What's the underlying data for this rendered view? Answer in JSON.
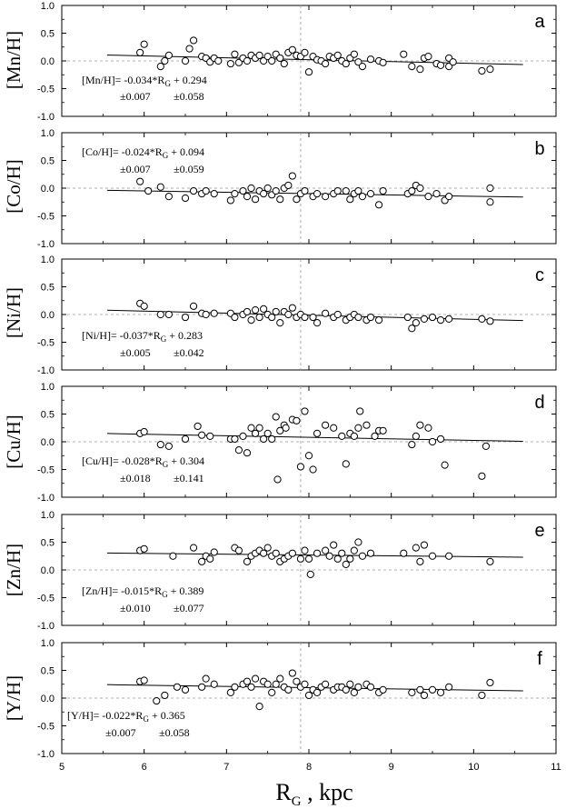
{
  "figure": {
    "xlabel_main": "R",
    "xlabel_sub": "G",
    "xlabel_rest": " , kpc",
    "x_ticks": [
      "5",
      "6",
      "7",
      "8",
      "9",
      "10",
      "11"
    ],
    "y_ticks": [
      "1.0",
      "0.5",
      "0.0",
      "-0.5",
      "-1.0"
    ],
    "sun_line_x": 7.9
  },
  "chart_data": [
    {
      "type": "scatter",
      "panel": "a",
      "ylabel": "[Mn/H]",
      "xlim": [
        5,
        11
      ],
      "ylim": [
        -1.0,
        1.0
      ],
      "equation": {
        "line1_a": "[Mn/H]= -0.034*R",
        "line1_sub": "G",
        "line1_b": " + 0.294",
        "err_slope": "±0.007",
        "err_intercept": "±0.058"
      },
      "fit": {
        "slope": -0.034,
        "intercept": 0.294,
        "x_range": [
          5.55,
          10.6
        ]
      },
      "points": [
        [
          5.95,
          0.15
        ],
        [
          6.0,
          0.3
        ],
        [
          6.2,
          -0.1
        ],
        [
          6.25,
          0.0
        ],
        [
          6.3,
          0.1
        ],
        [
          6.5,
          0.0
        ],
        [
          6.55,
          0.22
        ],
        [
          6.6,
          0.37
        ],
        [
          6.7,
          0.08
        ],
        [
          6.75,
          0.05
        ],
        [
          6.8,
          -0.02
        ],
        [
          6.85,
          0.05
        ],
        [
          6.9,
          0.0
        ],
        [
          7.05,
          -0.05
        ],
        [
          7.1,
          0.12
        ],
        [
          7.15,
          -0.03
        ],
        [
          7.2,
          0.05
        ],
        [
          7.25,
          0.0
        ],
        [
          7.3,
          0.1
        ],
        [
          7.35,
          0.05
        ],
        [
          7.4,
          0.1
        ],
        [
          7.45,
          0.0
        ],
        [
          7.5,
          0.08
        ],
        [
          7.55,
          0.0
        ],
        [
          7.6,
          0.12
        ],
        [
          7.65,
          0.05
        ],
        [
          7.7,
          -0.05
        ],
        [
          7.75,
          0.15
        ],
        [
          7.8,
          0.2
        ],
        [
          7.85,
          0.1
        ],
        [
          7.9,
          0.08
        ],
        [
          7.95,
          0.15
        ],
        [
          8.0,
          -0.2
        ],
        [
          8.05,
          0.08
        ],
        [
          8.1,
          0.02
        ],
        [
          8.15,
          0.0
        ],
        [
          8.2,
          -0.05
        ],
        [
          8.25,
          0.08
        ],
        [
          8.3,
          0.05
        ],
        [
          8.35,
          0.1
        ],
        [
          8.4,
          0.0
        ],
        [
          8.45,
          -0.05
        ],
        [
          8.5,
          0.05
        ],
        [
          8.55,
          0.12
        ],
        [
          8.6,
          -0.02
        ],
        [
          8.65,
          -0.1
        ],
        [
          8.75,
          0.03
        ],
        [
          8.85,
          0.0
        ],
        [
          8.9,
          -0.03
        ],
        [
          9.15,
          0.12
        ],
        [
          9.25,
          -0.1
        ],
        [
          9.35,
          -0.15
        ],
        [
          9.4,
          0.05
        ],
        [
          9.45,
          0.08
        ],
        [
          9.55,
          -0.05
        ],
        [
          9.6,
          -0.08
        ],
        [
          9.7,
          -0.1
        ],
        [
          9.7,
          0.05
        ],
        [
          9.75,
          -0.02
        ],
        [
          10.1,
          -0.18
        ],
        [
          10.2,
          -0.15
        ]
      ]
    },
    {
      "type": "scatter",
      "panel": "b",
      "ylabel": "[Co/H]",
      "xlim": [
        5,
        11
      ],
      "ylim": [
        -1.0,
        1.0
      ],
      "equation": {
        "line1_a": "[Co/H]= -0.024*R",
        "line1_sub": "G",
        "line1_b": " + 0.094",
        "err_slope": "±0.007",
        "err_intercept": "±0.059"
      },
      "fit": {
        "slope": -0.024,
        "intercept": 0.094,
        "x_range": [
          5.55,
          10.6
        ]
      },
      "points": [
        [
          5.95,
          0.12
        ],
        [
          6.05,
          -0.05
        ],
        [
          6.2,
          0.02
        ],
        [
          6.3,
          -0.15
        ],
        [
          6.5,
          -0.18
        ],
        [
          6.6,
          -0.05
        ],
        [
          6.7,
          -0.1
        ],
        [
          6.75,
          -0.05
        ],
        [
          6.85,
          -0.1
        ],
        [
          7.05,
          -0.22
        ],
        [
          7.1,
          -0.1
        ],
        [
          7.2,
          -0.05
        ],
        [
          7.25,
          -0.15
        ],
        [
          7.3,
          0.0
        ],
        [
          7.35,
          -0.2
        ],
        [
          7.4,
          -0.05
        ],
        [
          7.45,
          -0.1
        ],
        [
          7.5,
          0.0
        ],
        [
          7.55,
          -0.12
        ],
        [
          7.6,
          -0.05
        ],
        [
          7.65,
          -0.2
        ],
        [
          7.7,
          0.0
        ],
        [
          7.75,
          0.05
        ],
        [
          7.8,
          0.22
        ],
        [
          7.85,
          -0.2
        ],
        [
          7.9,
          -0.1
        ],
        [
          7.95,
          -0.05
        ],
        [
          8.05,
          -0.15
        ],
        [
          8.1,
          -0.1
        ],
        [
          8.2,
          -0.15
        ],
        [
          8.3,
          -0.1
        ],
        [
          8.35,
          -0.05
        ],
        [
          8.45,
          -0.05
        ],
        [
          8.5,
          -0.2
        ],
        [
          8.55,
          -0.1
        ],
        [
          8.6,
          -0.05
        ],
        [
          8.65,
          -0.15
        ],
        [
          8.75,
          -0.1
        ],
        [
          8.85,
          -0.3
        ],
        [
          8.9,
          -0.05
        ],
        [
          9.2,
          -0.1
        ],
        [
          9.25,
          -0.05
        ],
        [
          9.3,
          0.05
        ],
        [
          9.35,
          0.0
        ],
        [
          9.45,
          -0.15
        ],
        [
          9.55,
          -0.1
        ],
        [
          9.65,
          -0.22
        ],
        [
          9.7,
          -0.15
        ],
        [
          10.2,
          -0.25
        ],
        [
          10.2,
          0.0
        ]
      ]
    },
    {
      "type": "scatter",
      "panel": "c",
      "ylabel": "[Ni/H]",
      "xlim": [
        5,
        11
      ],
      "ylim": [
        -1.0,
        1.0
      ],
      "equation": {
        "line1_a": "[Ni/H]= -0.037*R",
        "line1_sub": "G",
        "line1_b": " + 0.283",
        "err_slope": "±0.005",
        "err_intercept": "±0.042"
      },
      "fit": {
        "slope": -0.037,
        "intercept": 0.283,
        "x_range": [
          5.55,
          10.6
        ]
      },
      "points": [
        [
          5.95,
          0.2
        ],
        [
          6.0,
          0.15
        ],
        [
          6.2,
          0.0
        ],
        [
          6.3,
          0.0
        ],
        [
          6.5,
          -0.05
        ],
        [
          6.6,
          0.15
        ],
        [
          6.7,
          0.02
        ],
        [
          6.75,
          0.0
        ],
        [
          6.85,
          0.02
        ],
        [
          7.05,
          0.02
        ],
        [
          7.1,
          -0.05
        ],
        [
          7.2,
          0.0
        ],
        [
          7.25,
          0.05
        ],
        [
          7.3,
          -0.1
        ],
        [
          7.35,
          0.08
        ],
        [
          7.4,
          -0.05
        ],
        [
          7.45,
          0.1
        ],
        [
          7.5,
          0.0
        ],
        [
          7.55,
          -0.05
        ],
        [
          7.6,
          0.05
        ],
        [
          7.65,
          -0.15
        ],
        [
          7.7,
          0.05
        ],
        [
          7.75,
          0.0
        ],
        [
          7.8,
          0.12
        ],
        [
          7.85,
          -0.05
        ],
        [
          7.9,
          0.0
        ],
        [
          7.95,
          -0.05
        ],
        [
          8.05,
          -0.05
        ],
        [
          8.1,
          -0.15
        ],
        [
          8.2,
          0.02
        ],
        [
          8.3,
          -0.05
        ],
        [
          8.35,
          0.0
        ],
        [
          8.45,
          -0.1
        ],
        [
          8.5,
          -0.05
        ],
        [
          8.55,
          0.0
        ],
        [
          8.6,
          -0.05
        ],
        [
          8.7,
          -0.1
        ],
        [
          8.75,
          -0.05
        ],
        [
          8.85,
          -0.1
        ],
        [
          9.2,
          -0.05
        ],
        [
          9.25,
          -0.25
        ],
        [
          9.3,
          -0.15
        ],
        [
          9.4,
          -0.08
        ],
        [
          9.5,
          -0.05
        ],
        [
          9.6,
          -0.1
        ],
        [
          9.7,
          -0.08
        ],
        [
          10.1,
          -0.08
        ],
        [
          10.2,
          -0.12
        ]
      ]
    },
    {
      "type": "scatter",
      "panel": "d",
      "ylabel": "[Cu/H]",
      "xlim": [
        5,
        11
      ],
      "ylim": [
        -1.0,
        1.0
      ],
      "equation": {
        "line1_a": "[Cu/H]= -0.028*R",
        "line1_sub": "G",
        "line1_b": " + 0.304",
        "err_slope": "±0.018",
        "err_intercept": "±0.141"
      },
      "fit": {
        "slope": -0.028,
        "intercept": 0.304,
        "x_range": [
          5.55,
          10.6
        ]
      },
      "points": [
        [
          5.95,
          0.15
        ],
        [
          6.0,
          0.18
        ],
        [
          6.2,
          -0.05
        ],
        [
          6.3,
          -0.08
        ],
        [
          6.5,
          0.05
        ],
        [
          6.65,
          0.28
        ],
        [
          6.7,
          0.12
        ],
        [
          6.8,
          0.1
        ],
        [
          7.05,
          0.05
        ],
        [
          7.1,
          0.05
        ],
        [
          7.15,
          -0.15
        ],
        [
          7.2,
          0.1
        ],
        [
          7.25,
          -0.2
        ],
        [
          7.3,
          0.25
        ],
        [
          7.35,
          0.15
        ],
        [
          7.4,
          0.25
        ],
        [
          7.45,
          0.05
        ],
        [
          7.5,
          0.15
        ],
        [
          7.55,
          0.05
        ],
        [
          7.6,
          0.45
        ],
        [
          7.62,
          -0.68
        ],
        [
          7.65,
          0.2
        ],
        [
          7.7,
          0.3
        ],
        [
          7.72,
          0.25
        ],
        [
          7.8,
          0.4
        ],
        [
          7.85,
          0.38
        ],
        [
          7.9,
          -0.45
        ],
        [
          7.95,
          0.55
        ],
        [
          8.0,
          -0.25
        ],
        [
          8.05,
          -0.5
        ],
        [
          8.1,
          0.15
        ],
        [
          8.2,
          0.3
        ],
        [
          8.3,
          0.25
        ],
        [
          8.4,
          0.1
        ],
        [
          8.45,
          -0.4
        ],
        [
          8.5,
          0.15
        ],
        [
          8.55,
          0.1
        ],
        [
          8.6,
          0.25
        ],
        [
          8.62,
          0.55
        ],
        [
          8.7,
          0.3
        ],
        [
          8.8,
          0.1
        ],
        [
          8.85,
          0.2
        ],
        [
          8.9,
          0.2
        ],
        [
          9.25,
          -0.05
        ],
        [
          9.3,
          0.1
        ],
        [
          9.35,
          0.3
        ],
        [
          9.45,
          0.25
        ],
        [
          9.5,
          0.0
        ],
        [
          9.6,
          0.05
        ],
        [
          9.65,
          -0.42
        ],
        [
          10.1,
          -0.62
        ],
        [
          10.15,
          -0.08
        ]
      ]
    },
    {
      "type": "scatter",
      "panel": "e",
      "ylabel": "[Zn/H]",
      "xlim": [
        5,
        11
      ],
      "ylim": [
        -1.0,
        1.0
      ],
      "equation": {
        "line1_a": "[Zn/H]= -0.015*R",
        "line1_sub": "G",
        "line1_b": " + 0.389",
        "err_slope": "±0.010",
        "err_intercept": "±0.077"
      },
      "fit": {
        "slope": -0.015,
        "intercept": 0.389,
        "x_range": [
          5.55,
          10.6
        ]
      },
      "points": [
        [
          5.95,
          0.35
        ],
        [
          6.0,
          0.38
        ],
        [
          6.35,
          0.25
        ],
        [
          6.6,
          0.4
        ],
        [
          6.7,
          0.15
        ],
        [
          6.75,
          0.25
        ],
        [
          6.8,
          0.2
        ],
        [
          6.85,
          0.32
        ],
        [
          7.1,
          0.4
        ],
        [
          7.15,
          0.35
        ],
        [
          7.25,
          0.15
        ],
        [
          7.3,
          0.25
        ],
        [
          7.35,
          0.3
        ],
        [
          7.4,
          0.35
        ],
        [
          7.45,
          0.3
        ],
        [
          7.5,
          0.4
        ],
        [
          7.55,
          0.25
        ],
        [
          7.6,
          0.3
        ],
        [
          7.65,
          0.15
        ],
        [
          7.7,
          0.2
        ],
        [
          7.75,
          0.25
        ],
        [
          7.8,
          0.3
        ],
        [
          7.9,
          0.2
        ],
        [
          7.95,
          0.35
        ],
        [
          8.0,
          0.2
        ],
        [
          8.02,
          -0.08
        ],
        [
          8.1,
          0.3
        ],
        [
          8.2,
          0.35
        ],
        [
          8.25,
          0.25
        ],
        [
          8.3,
          0.45
        ],
        [
          8.35,
          0.2
        ],
        [
          8.4,
          0.3
        ],
        [
          8.45,
          0.1
        ],
        [
          8.5,
          0.2
        ],
        [
          8.55,
          0.35
        ],
        [
          8.6,
          0.5
        ],
        [
          8.65,
          0.25
        ],
        [
          8.75,
          0.3
        ],
        [
          9.15,
          0.3
        ],
        [
          9.3,
          0.4
        ],
        [
          9.35,
          0.15
        ],
        [
          9.4,
          0.45
        ],
        [
          9.5,
          0.25
        ],
        [
          9.7,
          0.25
        ],
        [
          10.2,
          0.15
        ]
      ]
    },
    {
      "type": "scatter",
      "panel": "f",
      "ylabel": "[Y/H]",
      "xlim": [
        5,
        11
      ],
      "ylim": [
        -1.0,
        1.0
      ],
      "equation": {
        "line1_a": "[Y/H]= -0.022*R",
        "line1_sub": "G",
        "line1_b": " + 0.365",
        "err_slope": "±0.007",
        "err_intercept": "±0.058"
      },
      "fit": {
        "slope": -0.022,
        "intercept": 0.365,
        "x_range": [
          5.55,
          10.6
        ]
      },
      "points": [
        [
          5.95,
          0.3
        ],
        [
          6.0,
          0.32
        ],
        [
          6.15,
          -0.05
        ],
        [
          6.25,
          0.05
        ],
        [
          6.4,
          0.2
        ],
        [
          6.5,
          0.15
        ],
        [
          6.7,
          0.2
        ],
        [
          6.75,
          0.35
        ],
        [
          6.85,
          0.25
        ],
        [
          7.05,
          0.1
        ],
        [
          7.1,
          0.2
        ],
        [
          7.2,
          0.25
        ],
        [
          7.25,
          0.3
        ],
        [
          7.3,
          0.2
        ],
        [
          7.35,
          0.35
        ],
        [
          7.4,
          -0.15
        ],
        [
          7.45,
          0.3
        ],
        [
          7.5,
          0.25
        ],
        [
          7.55,
          0.1
        ],
        [
          7.6,
          0.25
        ],
        [
          7.65,
          0.35
        ],
        [
          7.7,
          0.2
        ],
        [
          7.75,
          0.15
        ],
        [
          7.8,
          0.45
        ],
        [
          7.85,
          0.3
        ],
        [
          7.9,
          0.2
        ],
        [
          7.95,
          0.25
        ],
        [
          8.0,
          0.05
        ],
        [
          8.05,
          0.15
        ],
        [
          8.1,
          0.1
        ],
        [
          8.15,
          0.2
        ],
        [
          8.2,
          0.25
        ],
        [
          8.3,
          0.15
        ],
        [
          8.35,
          0.2
        ],
        [
          8.4,
          0.2
        ],
        [
          8.45,
          0.15
        ],
        [
          8.5,
          0.25
        ],
        [
          8.55,
          0.1
        ],
        [
          8.6,
          0.2
        ],
        [
          8.7,
          0.25
        ],
        [
          8.75,
          0.2
        ],
        [
          8.85,
          0.1
        ],
        [
          8.9,
          0.15
        ],
        [
          9.25,
          0.1
        ],
        [
          9.35,
          0.15
        ],
        [
          9.4,
          0.05
        ],
        [
          9.5,
          0.15
        ],
        [
          9.6,
          0.1
        ],
        [
          9.7,
          0.2
        ],
        [
          10.1,
          0.05
        ],
        [
          10.2,
          0.28
        ]
      ]
    }
  ]
}
